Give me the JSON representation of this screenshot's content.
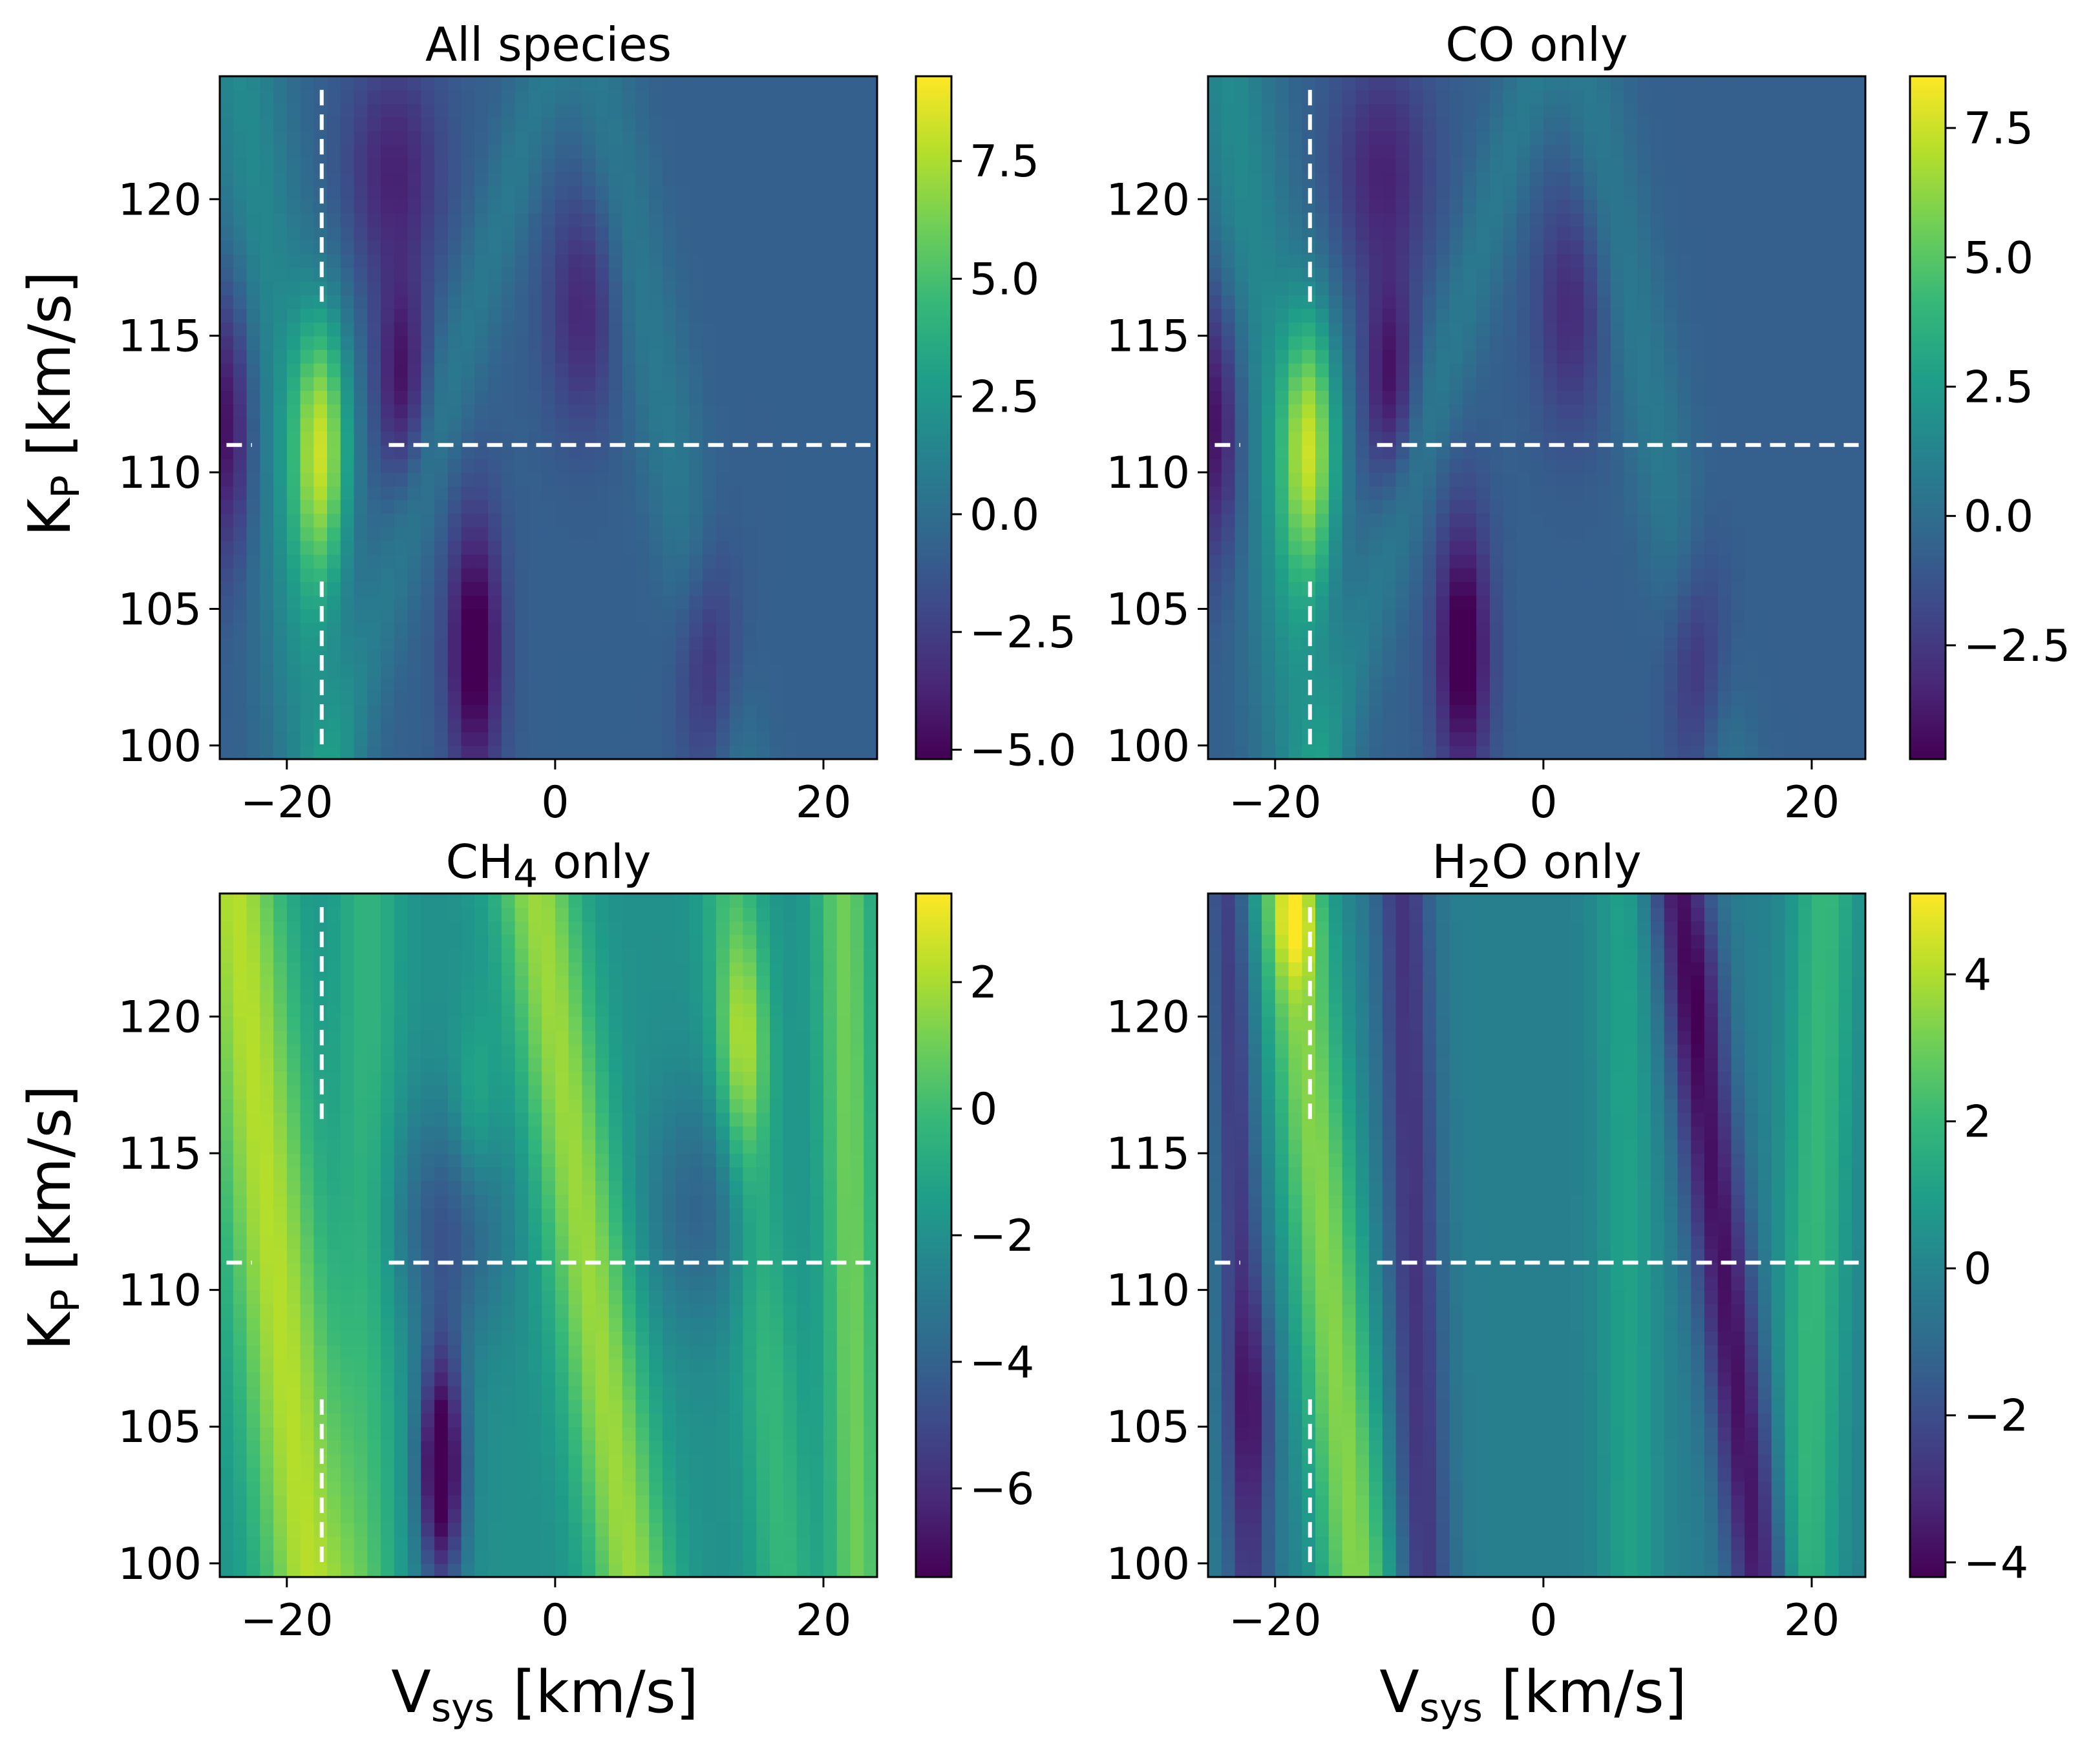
{
  "figure": {
    "layout": "2x2 grid of Kp-Vsys cross-correlation significance maps",
    "shared_labels": {
      "ylabel_main": "K",
      "ylabel_sub": "P",
      "ylabel_rest": " [km/s]",
      "xlabel_main": "V",
      "xlabel_sub": "sys",
      "xlabel_rest": " [km/s]"
    }
  },
  "colors": {
    "colormap": "viridis",
    "viridis_stops": [
      "#440154",
      "#482878",
      "#3e4989",
      "#31688e",
      "#26828e",
      "#1f9e89",
      "#35b779",
      "#6ece58",
      "#b5de2b",
      "#fde725"
    ],
    "marker_line": "#ffffff",
    "frame": "#000000"
  },
  "chart_data": [
    {
      "type": "heatmap",
      "title_parts": [
        "All species"
      ],
      "x_range": [
        -25,
        24
      ],
      "y_range": [
        99.5,
        124.5
      ],
      "xticks": [
        -20,
        0,
        20
      ],
      "xtick_labels": [
        "−20",
        "0",
        "20"
      ],
      "yticks": [
        100,
        105,
        110,
        115,
        120
      ],
      "ytick_labels": [
        "100",
        "105",
        "110",
        "115",
        "120"
      ],
      "cbar_range": [
        -5.2,
        9.3
      ],
      "cbar_ticks": [
        -5.0,
        -2.5,
        0.0,
        2.5,
        5.0,
        7.5
      ],
      "cbar_tick_labels": [
        "−5.0",
        "−2.5",
        "0.0",
        "2.5",
        "5.0",
        "7.5"
      ],
      "peak": {
        "vsys": -17.4,
        "kp": 111.0,
        "value": 9.2
      },
      "marker": {
        "vsys": -17.4,
        "kp": 111.0
      },
      "ridges": [
        {
          "v_at_100": -18.0,
          "v_at_125": -23.5,
          "amp": 2.5,
          "width": 2.4
        },
        {
          "v_at_100": -16.0,
          "v_at_125": -0.5,
          "amp": 1.5,
          "width": 1.6
        },
        {
          "v_at_100": 13.0,
          "v_at_125": 3.0,
          "amp": 1.5,
          "width": 1.8
        }
      ],
      "blobs": [
        {
          "vsys": -17.4,
          "kp": 111.0,
          "value": 7.8,
          "sv": 1.5,
          "sk": 3.6
        },
        {
          "vsys": -6.0,
          "kp": 103.5,
          "value": -5.2,
          "sv": 1.4,
          "sk": 3.4
        },
        {
          "vsys": -24.5,
          "kp": 112.0,
          "value": -4.3,
          "sv": 1.6,
          "sk": 3.6
        },
        {
          "vsys": -11.5,
          "kp": 113.5,
          "value": -3.6,
          "sv": 1.3,
          "sk": 2.6
        },
        {
          "vsys": 11.5,
          "kp": 103.0,
          "value": -3.4,
          "sv": 1.5,
          "sk": 3.0
        },
        {
          "vsys": -12.0,
          "kp": 121.0,
          "value": -3.0,
          "sv": 2.5,
          "sk": 3.0
        },
        {
          "vsys": 2.0,
          "kp": 116.0,
          "value": -2.8,
          "sv": 1.8,
          "sk": 3.0
        }
      ],
      "base": -0.8
    },
    {
      "type": "heatmap",
      "title_parts": [
        "CO only"
      ],
      "x_range": [
        -25,
        24
      ],
      "y_range": [
        99.5,
        124.5
      ],
      "xticks": [
        -20,
        0,
        20
      ],
      "xtick_labels": [
        "−20",
        "0",
        "20"
      ],
      "yticks": [
        100,
        105,
        110,
        115,
        120
      ],
      "ytick_labels": [
        "100",
        "105",
        "110",
        "115",
        "120"
      ],
      "cbar_range": [
        -4.7,
        8.5
      ],
      "cbar_ticks": [
        -2.5,
        0.0,
        2.5,
        5.0,
        7.5
      ],
      "cbar_tick_labels": [
        "−2.5",
        "0.0",
        "2.5",
        "5.0",
        "7.5"
      ],
      "peak": {
        "vsys": -17.4,
        "kp": 111.0,
        "value": 8.4
      },
      "marker": {
        "vsys": -17.4,
        "kp": 111.0
      },
      "ridges": [
        {
          "v_at_100": -18.0,
          "v_at_125": -23.5,
          "amp": 2.3,
          "width": 2.4
        },
        {
          "v_at_100": -16.0,
          "v_at_125": -0.5,
          "amp": 1.4,
          "width": 1.6
        },
        {
          "v_at_100": 13.0,
          "v_at_125": 3.0,
          "amp": 1.4,
          "width": 1.8
        }
      ],
      "blobs": [
        {
          "vsys": -17.4,
          "kp": 111.0,
          "value": 7.1,
          "sv": 1.5,
          "sk": 3.6
        },
        {
          "vsys": -6.0,
          "kp": 103.5,
          "value": -4.7,
          "sv": 1.4,
          "sk": 3.4
        },
        {
          "vsys": -24.5,
          "kp": 112.0,
          "value": -3.9,
          "sv": 1.6,
          "sk": 3.6
        },
        {
          "vsys": -11.5,
          "kp": 113.5,
          "value": -3.3,
          "sv": 1.3,
          "sk": 2.6
        },
        {
          "vsys": 11.5,
          "kp": 103.0,
          "value": -3.0,
          "sv": 1.5,
          "sk": 3.0
        },
        {
          "vsys": -12.0,
          "kp": 121.0,
          "value": -2.7,
          "sv": 2.5,
          "sk": 3.0
        },
        {
          "vsys": 2.0,
          "kp": 116.0,
          "value": -2.4,
          "sv": 1.8,
          "sk": 3.0
        }
      ],
      "base": -0.7
    },
    {
      "type": "heatmap",
      "title_parts": [
        "CH",
        "4",
        " only"
      ],
      "x_range": [
        -25,
        24
      ],
      "y_range": [
        99.5,
        124.5
      ],
      "xticks": [
        -20,
        0,
        20
      ],
      "xtick_labels": [
        "−20",
        "0",
        "20"
      ],
      "yticks": [
        100,
        105,
        110,
        115,
        120
      ],
      "ytick_labels": [
        "100",
        "105",
        "110",
        "115",
        "120"
      ],
      "cbar_range": [
        -7.4,
        3.4
      ],
      "cbar_ticks": [
        -6,
        -4,
        -2,
        0,
        2
      ],
      "cbar_tick_labels": [
        "−6",
        "−4",
        "−2",
        "0",
        "2"
      ],
      "peak": {
        "vsys": -19.0,
        "kp": 109.0,
        "value": 3.3
      },
      "marker": {
        "vsys": -17.4,
        "kp": 111.0
      },
      "ridges": [
        {
          "v_at_100": -18.5,
          "v_at_125": -24.0,
          "amp": 4.2,
          "width": 2.6
        },
        {
          "v_at_100": 5.5,
          "v_at_125": -1.5,
          "amp": 3.8,
          "width": 2.2
        },
        {
          "v_at_100": 22.5,
          "v_at_125": 21.5,
          "amp": 3.0,
          "width": 1.5
        },
        {
          "v_at_100": 17.0,
          "v_at_125": 13.0,
          "amp": 1.8,
          "width": 1.6
        },
        {
          "v_at_100": -14.0,
          "v_at_125": -14.0,
          "amp": 1.6,
          "width": 1.7
        }
      ],
      "blobs": [
        {
          "vsys": -8.5,
          "kp": 103.5,
          "value": -6.5,
          "sv": 1.2,
          "sk": 3.2
        },
        {
          "vsys": 14.0,
          "kp": 119.0,
          "value": 2.5,
          "sv": 1.3,
          "sk": 3.0
        },
        {
          "vsys": -6.0,
          "kp": 116.5,
          "value": 1.4,
          "sv": 1.2,
          "sk": 2.5
        },
        {
          "vsys": -8.0,
          "kp": 112.5,
          "value": -2.5,
          "sv": 3.0,
          "sk": 3.0
        },
        {
          "vsys": 11.0,
          "kp": 113.0,
          "value": -2.0,
          "sv": 3.0,
          "sk": 3.0
        }
      ],
      "base": -2.0
    },
    {
      "type": "heatmap",
      "title_parts": [
        "H",
        "2",
        "O only"
      ],
      "x_range": [
        -25,
        24
      ],
      "y_range": [
        99.5,
        124.5
      ],
      "xticks": [
        -20,
        0,
        20
      ],
      "xtick_labels": [
        "−20",
        "0",
        "20"
      ],
      "yticks": [
        100,
        105,
        110,
        115,
        120
      ],
      "ytick_labels": [
        "100",
        "105",
        "110",
        "115",
        "120"
      ],
      "cbar_range": [
        -4.2,
        5.1
      ],
      "cbar_ticks": [
        -4,
        -2,
        0,
        2,
        4
      ],
      "cbar_tick_labels": [
        "−4",
        "−2",
        "0",
        "2",
        "4"
      ],
      "peak": {
        "vsys": -18.5,
        "kp": 124.0,
        "value": 5.0
      },
      "marker": {
        "vsys": -17.4,
        "kp": 111.0
      },
      "ridges": [
        {
          "v_at_100": -14.0,
          "v_at_125": -19.0,
          "amp": 3.6,
          "width": 2.0
        },
        {
          "v_at_100": 19.5,
          "v_at_125": 21.0,
          "amp": 2.2,
          "width": 1.8
        },
        {
          "v_at_100": 6.5,
          "v_at_125": 6.0,
          "amp": 1.3,
          "width": 1.6
        },
        {
          "v_at_100": 16.0,
          "v_at_125": 10.0,
          "amp": -3.6,
          "width": 1.6
        },
        {
          "v_at_100": -9.0,
          "v_at_125": -10.5,
          "amp": -2.6,
          "width": 1.5
        },
        {
          "v_at_100": -22.0,
          "v_at_125": -23.5,
          "amp": -2.4,
          "width": 1.2
        }
      ],
      "blobs": [
        {
          "vsys": -18.5,
          "kp": 123.5,
          "value": 2.0,
          "sv": 1.2,
          "sk": 1.6
        },
        {
          "vsys": -21.5,
          "kp": 106.0,
          "value": -1.5,
          "sv": 1.2,
          "sk": 3.0
        },
        {
          "vsys": 12.0,
          "kp": 121.0,
          "value": -0.6,
          "sv": 1.2,
          "sk": 2.0
        }
      ],
      "base": -0.2
    }
  ]
}
